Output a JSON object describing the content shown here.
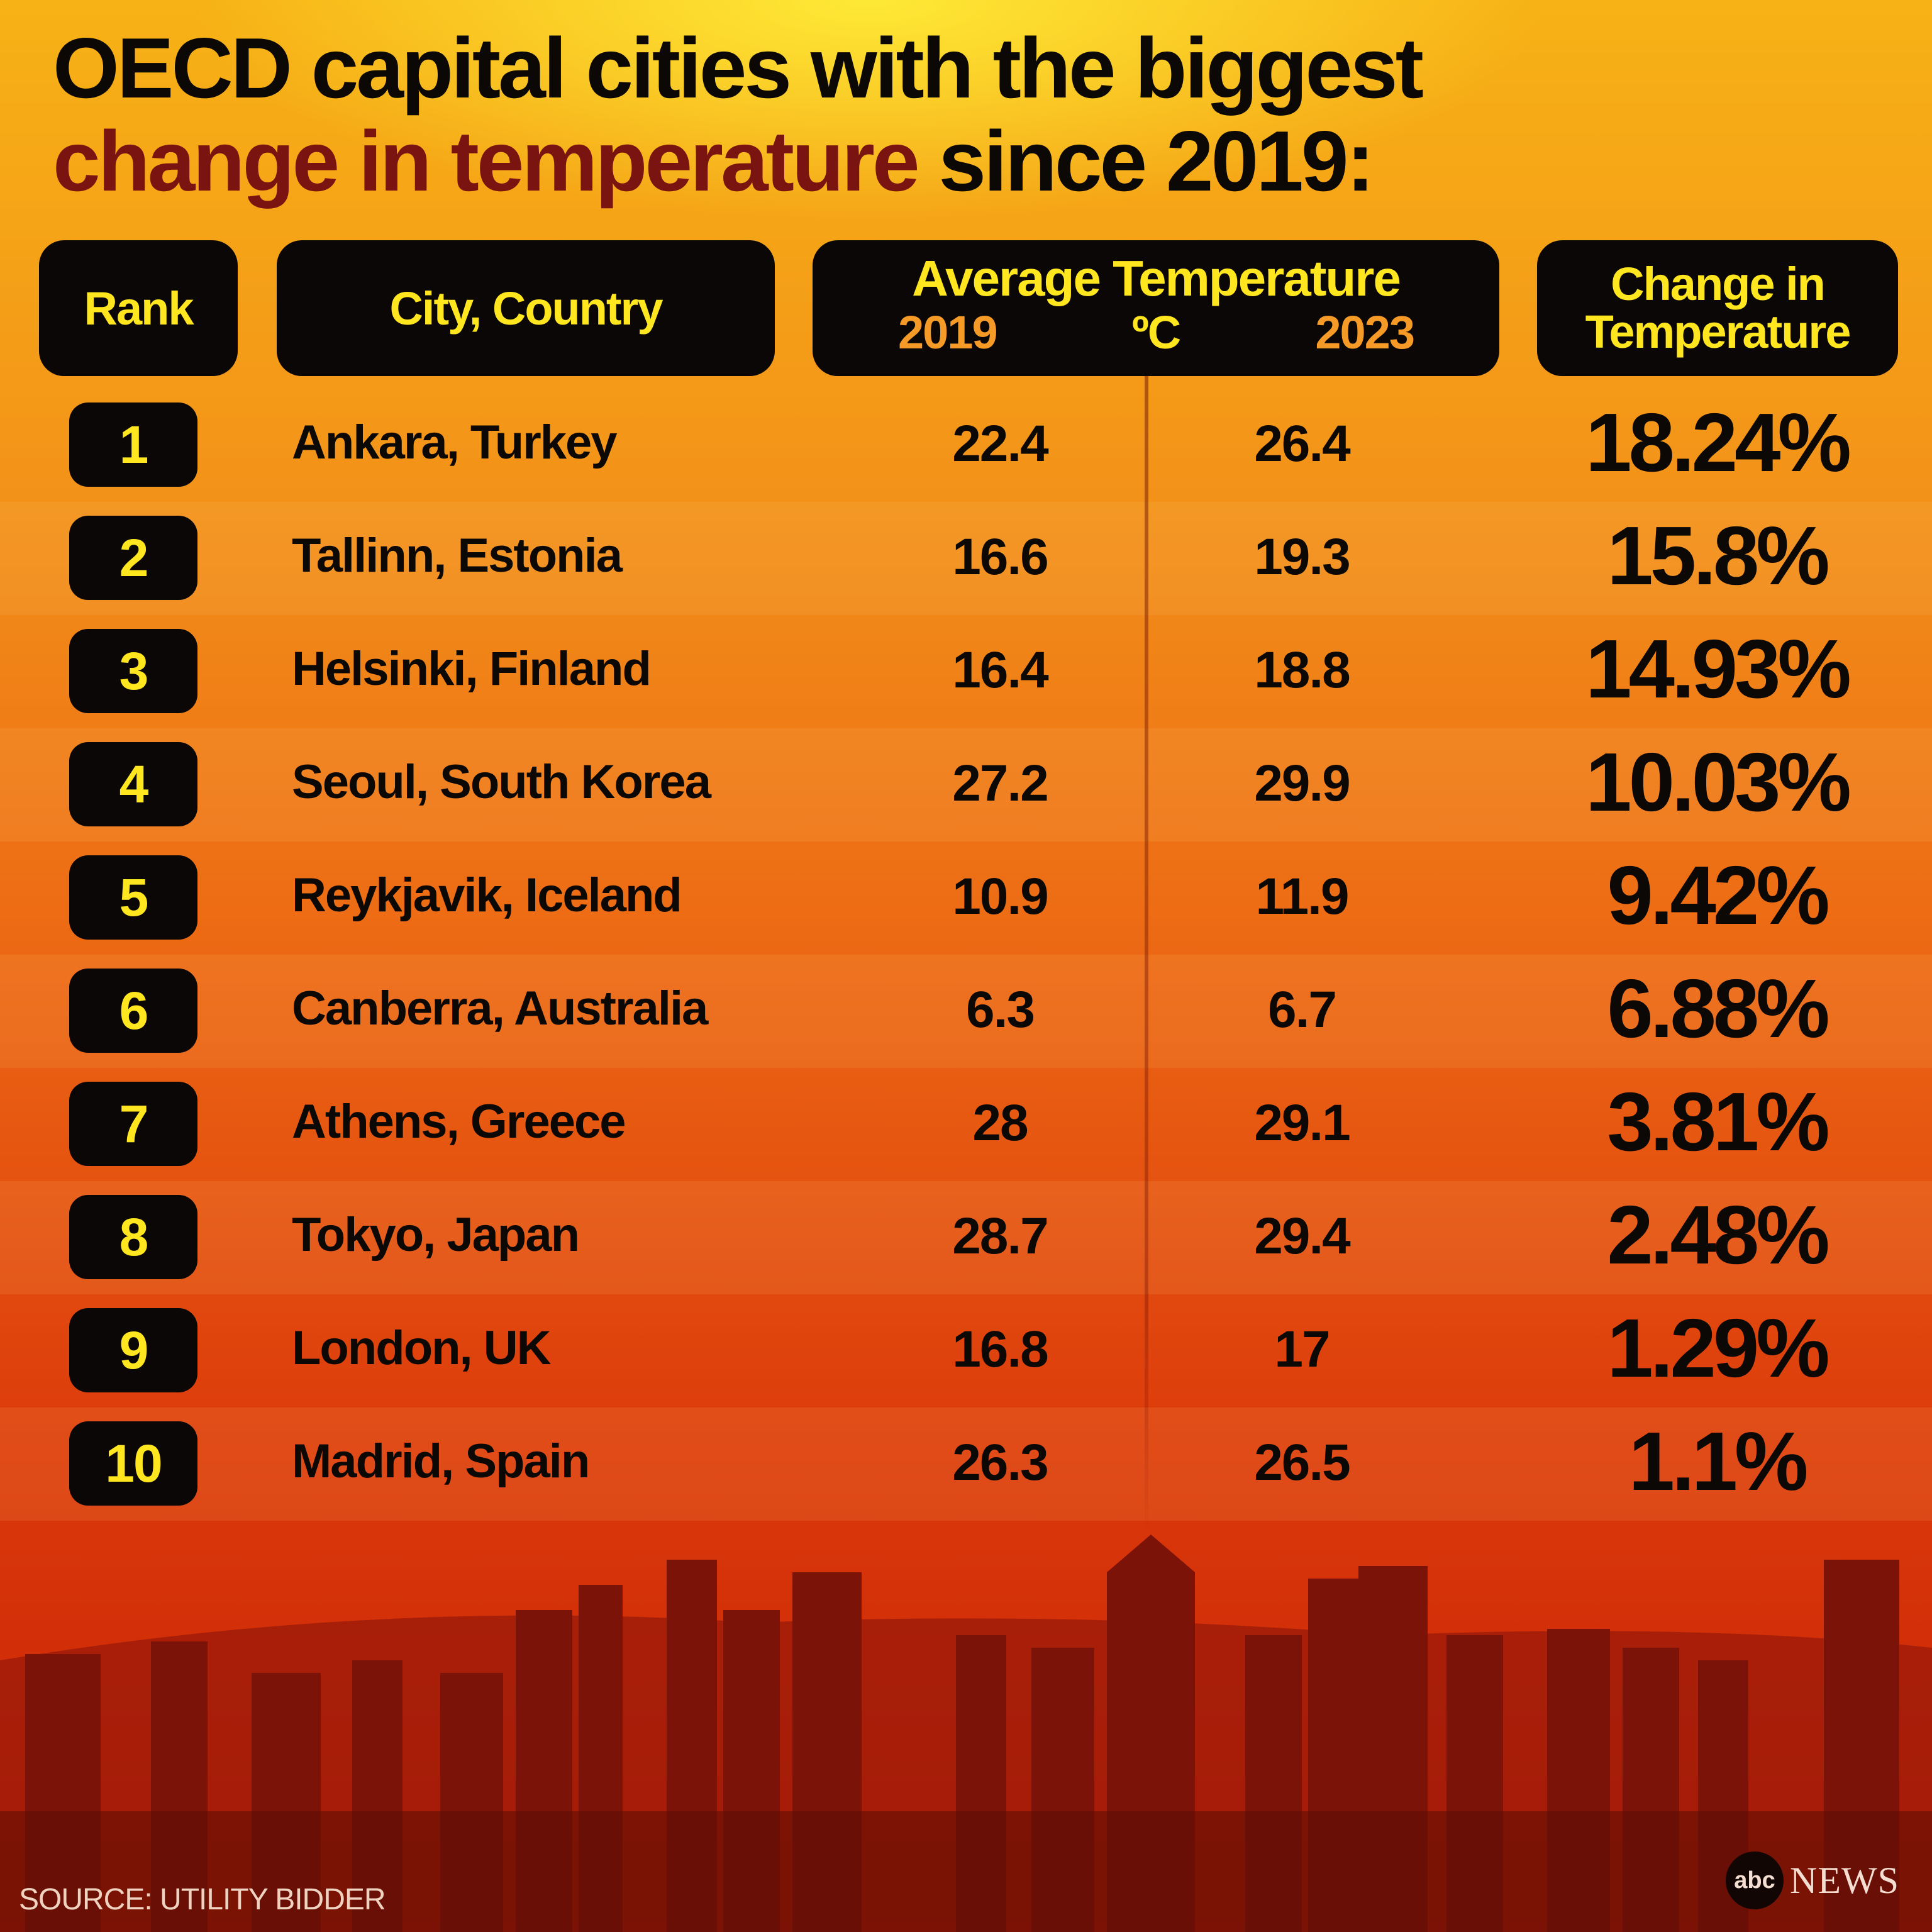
{
  "title": {
    "line1": "OECD capital cities with the biggest",
    "highlight": "change in temperature",
    "line2_rest": " since 2019:"
  },
  "headers": {
    "rank": "Rank",
    "city": "City, Country",
    "avg_temp": "Average Temperature",
    "year_2019": "2019",
    "unit": "ºC",
    "year_2023": "2023",
    "change_line1": "Change in",
    "change_line2": "Temperature"
  },
  "colors": {
    "header_bg": "#0a0706",
    "header_text": "#ffe61f",
    "year_text": "#f59a26",
    "title_highlight": "#7a1410",
    "bg_top": "#f7b215",
    "bg_bottom": "#cc2106"
  },
  "chart_data": {
    "type": "table",
    "columns": [
      "Rank",
      "City, Country",
      "2019",
      "2023",
      "Change in Temperature"
    ],
    "rows": [
      {
        "rank": "1",
        "city": "Ankara, Turkey",
        "t2019": "22.4",
        "t2023": "26.4",
        "change": "18.24%"
      },
      {
        "rank": "2",
        "city": "Tallinn, Estonia",
        "t2019": "16.6",
        "t2023": "19.3",
        "change": "15.8%"
      },
      {
        "rank": "3",
        "city": "Helsinki, Finland",
        "t2019": "16.4",
        "t2023": "18.8",
        "change": "14.93%"
      },
      {
        "rank": "4",
        "city": "Seoul, South Korea",
        "t2019": "27.2",
        "t2023": "29.9",
        "change": "10.03%"
      },
      {
        "rank": "5",
        "city": "Reykjavik, Iceland",
        "t2019": "10.9",
        "t2023": "11.9",
        "change": "9.42%"
      },
      {
        "rank": "6",
        "city": "Canberra, Australia",
        "t2019": "6.3",
        "t2023": "6.7",
        "change": "6.88%"
      },
      {
        "rank": "7",
        "city": "Athens, Greece",
        "t2019": "28",
        "t2023": "29.1",
        "change": "3.81%"
      },
      {
        "rank": "8",
        "city": "Tokyo, Japan",
        "t2019": "28.7",
        "t2023": "29.4",
        "change": "2.48%"
      },
      {
        "rank": "9",
        "city": "London, UK",
        "t2019": "16.8",
        "t2023": "17",
        "change": "1.29%"
      },
      {
        "rank": "10",
        "city": "Madrid, Spain",
        "t2019": "26.3",
        "t2023": "26.5",
        "change": "1.1%"
      }
    ]
  },
  "footer": {
    "source": "SOURCE: UTILITY BIDDER",
    "logo_mark": "abc",
    "logo_word": "NEWS"
  }
}
